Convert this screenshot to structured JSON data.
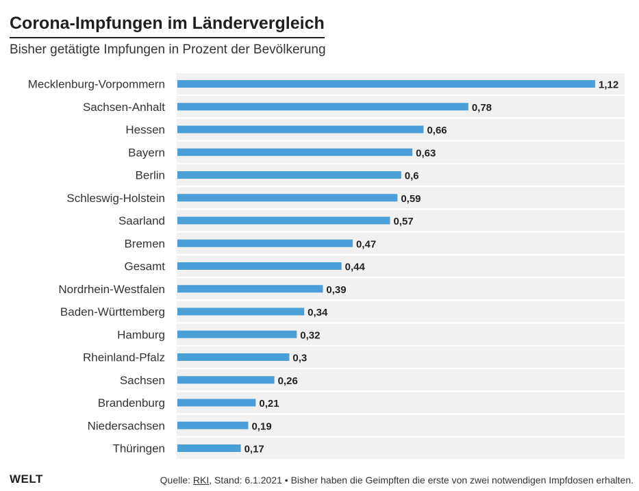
{
  "header": {
    "title": "Corona-Impfungen im Ländervergleich",
    "subtitle": "Bisher getätigte Impfungen in Prozent der Bevölkerung"
  },
  "chart_data": {
    "type": "bar",
    "orientation": "horizontal",
    "title": "Corona-Impfungen im Ländervergleich",
    "subtitle": "Bisher getätigte Impfungen in Prozent der Bevölkerung",
    "xlabel": "",
    "ylabel": "",
    "xlim": [
      0,
      1.12
    ],
    "grid": false,
    "legend": "none",
    "categories": [
      "Mecklenburg-Vorpommern",
      "Sachsen-Anhalt",
      "Hessen",
      "Bayern",
      "Berlin",
      "Schleswig-Holstein",
      "Saarland",
      "Bremen",
      "Gesamt",
      "Nordrhein-Westfalen",
      "Baden-Württemberg",
      "Hamburg",
      "Rheinland-Pfalz",
      "Sachsen",
      "Brandenburg",
      "Niedersachsen",
      "Thüringen"
    ],
    "values": [
      1.12,
      0.78,
      0.66,
      0.63,
      0.6,
      0.59,
      0.57,
      0.47,
      0.44,
      0.39,
      0.34,
      0.32,
      0.3,
      0.26,
      0.21,
      0.19,
      0.17
    ],
    "value_labels": [
      "1,12",
      "0,78",
      "0,66",
      "0,63",
      "0,6",
      "0,59",
      "0,57",
      "0,47",
      "0,44",
      "0,39",
      "0,34",
      "0,32",
      "0,3",
      "0,26",
      "0,21",
      "0,19",
      "0,17"
    ]
  },
  "colors": {
    "bar": "#4a9fd8",
    "row_background": "#f1f1f1",
    "text": "#222222"
  },
  "footer": {
    "brand": "WELT",
    "source_prefix": "Quelle: ",
    "source_link": "RKI",
    "source_suffix": ", Stand: 6.1.2021 • Bisher haben die Geimpften die erste von zwei notwendigen Impfdosen erhalten."
  }
}
